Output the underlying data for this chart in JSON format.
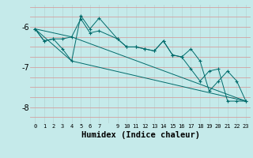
{
  "xlabel": "Humidex (Indice chaleur)",
  "bg_color": "#c5eaea",
  "grid_color_v": "#b8d8d8",
  "grid_color_h": "#d4a0a0",
  "line_color": "#006b6b",
  "xlim": [
    -0.5,
    23.5
  ],
  "ylim": [
    -8.4,
    -5.45
  ],
  "yticks": [
    -8,
    -7,
    -6
  ],
  "xtick_labels": [
    "0",
    "1",
    "2",
    "3",
    "4",
    "5",
    "6",
    "7",
    "",
    "9",
    "10",
    "11",
    "12",
    "13",
    "14",
    "15",
    "16",
    "17",
    "18",
    "19",
    "20",
    "21",
    "22",
    "23"
  ],
  "series1_x": [
    0,
    1,
    2,
    3,
    4,
    5,
    6,
    7,
    9,
    10,
    11,
    12,
    13,
    14,
    15,
    16,
    17,
    18,
    19,
    20,
    21,
    22,
    23
  ],
  "series1_y": [
    -6.05,
    -6.35,
    -6.3,
    -6.3,
    -6.25,
    -5.8,
    -6.15,
    -6.1,
    -6.3,
    -6.5,
    -6.5,
    -6.55,
    -6.6,
    -6.35,
    -6.7,
    -6.75,
    -7.05,
    -7.35,
    -7.1,
    -7.05,
    -7.85,
    -7.85,
    -7.85
  ],
  "series2_x": [
    0,
    1,
    2,
    3,
    4,
    5,
    6,
    7,
    9,
    10,
    11,
    12,
    13,
    14,
    15,
    16,
    17,
    18,
    19,
    20,
    21,
    22,
    23
  ],
  "series2_y": [
    -6.05,
    -6.35,
    -6.3,
    -6.55,
    -6.85,
    -5.72,
    -6.05,
    -5.78,
    -6.3,
    -6.5,
    -6.5,
    -6.55,
    -6.6,
    -6.35,
    -6.7,
    -6.75,
    -6.55,
    -6.85,
    -7.6,
    -7.35,
    -7.1,
    -7.35,
    -7.85
  ],
  "series3_x": [
    0,
    4,
    23
  ],
  "series3_y": [
    -6.05,
    -6.25,
    -7.85
  ],
  "series4_x": [
    0,
    4,
    23
  ],
  "series4_y": [
    -6.05,
    -6.85,
    -7.85
  ]
}
